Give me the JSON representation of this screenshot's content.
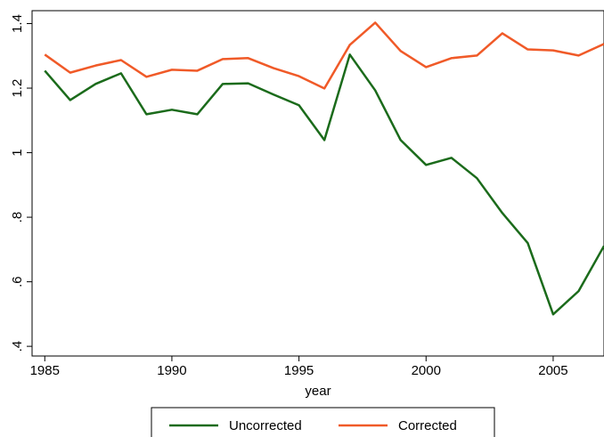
{
  "chart_data": {
    "type": "line",
    "x_label": "year",
    "x": [
      1985,
      1986,
      1987,
      1988,
      1989,
      1990,
      1991,
      1992,
      1993,
      1994,
      1995,
      1996,
      1997,
      1998,
      1999,
      2000,
      2001,
      2002,
      2003,
      2004,
      2005,
      2006,
      2007
    ],
    "series": [
      {
        "name": "Uncorrected",
        "color": "#1b6b1b",
        "values": [
          1.254,
          1.163,
          1.213,
          1.246,
          1.119,
          1.133,
          1.119,
          1.213,
          1.215,
          1.18,
          1.147,
          1.039,
          1.304,
          1.193,
          1.039,
          0.962,
          0.984,
          0.921,
          0.813,
          0.72,
          0.499,
          0.571,
          0.711
        ]
      },
      {
        "name": "Corrected",
        "color": "#f05a28",
        "values": [
          1.304,
          1.248,
          1.27,
          1.287,
          1.235,
          1.257,
          1.254,
          1.29,
          1.293,
          1.262,
          1.237,
          1.199,
          1.334,
          1.403,
          1.315,
          1.265,
          1.293,
          1.301,
          1.37,
          1.32,
          1.317,
          1.301,
          1.337
        ]
      }
    ],
    "xlim": [
      1984.5,
      2007
    ],
    "ylim": [
      0.37,
      1.44
    ],
    "xticks": [
      1985,
      1990,
      1995,
      2000,
      2005
    ],
    "yticks": [
      {
        "value": 0.4,
        "label": ".4"
      },
      {
        "value": 0.6,
        "label": ".6"
      },
      {
        "value": 0.8,
        "label": ".8"
      },
      1,
      1.2,
      1.4
    ],
    "legend": "bottom"
  }
}
